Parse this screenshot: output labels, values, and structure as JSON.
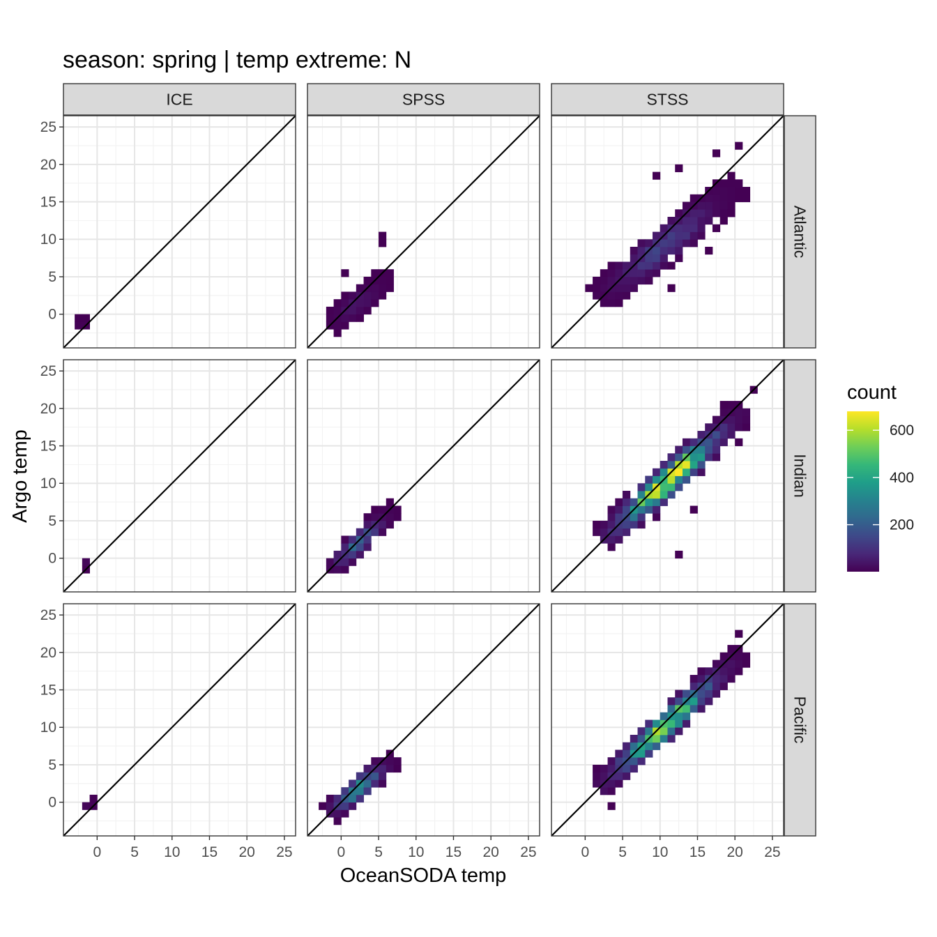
{
  "chart_data": {
    "type": "heatmap",
    "title": "season: spring | temp extreme: N",
    "xlabel": "OceanSODA temp",
    "ylabel": "Argo temp",
    "column_facets": [
      "ICE",
      "SPSS",
      "STSS"
    ],
    "row_facets": [
      "Atlantic",
      "Indian",
      "Pacific"
    ],
    "xlim": [
      -4.5,
      26.5
    ],
    "ylim": [
      -4.5,
      26.5
    ],
    "x_ticks": [
      0,
      5,
      10,
      15,
      20,
      25
    ],
    "y_ticks": [
      0,
      5,
      10,
      15,
      20,
      25
    ],
    "grid": true,
    "reference_line": "y = x",
    "legend": {
      "title": "count",
      "position": "right",
      "ticks": [
        200,
        400,
        600
      ],
      "min": 1,
      "max": 680,
      "palette": "viridis"
    },
    "bin_width": 1,
    "panels": [
      {
        "row": "Atlantic",
        "col": "ICE",
        "ridges": [
          {
            "x0": -2.5,
            "x1": -1.5,
            "y0": -2,
            "y1": -0.5,
            "hw": 0.9,
            "peak": 10
          }
        ]
      },
      {
        "row": "Atlantic",
        "col": "SPSS",
        "ridges": [
          {
            "x0": -1.5,
            "x1": 6.5,
            "y0": -1.5,
            "y1": 5,
            "hw": 1.6,
            "peak": 45
          }
        ],
        "outliers": [
          [
            5.5,
            10.5
          ],
          [
            5,
            9.5
          ],
          [
            0,
            5
          ]
        ]
      },
      {
        "row": "Atlantic",
        "col": "STSS",
        "ridges": [
          {
            "x0": 2.5,
            "x1": 20,
            "y0": 2.5,
            "y1": 17,
            "hw": 2.4,
            "peak": 140
          }
        ],
        "outliers": [
          [
            11.5,
            3
          ],
          [
            18,
            12.5
          ],
          [
            20,
            22.5
          ],
          [
            17.5,
            21.5
          ],
          [
            12.5,
            19.5
          ],
          [
            9.5,
            18
          ],
          [
            16.5,
            8
          ],
          [
            11.5,
            6.5
          ]
        ]
      },
      {
        "row": "Indian",
        "col": "ICE",
        "ridges": [
          {
            "x0": -2,
            "x1": -1,
            "y0": -1.5,
            "y1": 0,
            "hw": 0.8,
            "peak": 12
          }
        ]
      },
      {
        "row": "Indian",
        "col": "SPSS",
        "ridges": [
          {
            "x0": -1.5,
            "x1": 7,
            "y0": -1.5,
            "y1": 6.5,
            "hw": 1.5,
            "peak": 210
          }
        ]
      },
      {
        "row": "Indian",
        "col": "STSS",
        "ridges": [
          {
            "x0": 3,
            "x1": 21,
            "y0": 3,
            "y1": 19.5,
            "hw": 2.1,
            "peak": 680
          }
        ],
        "outliers": [
          [
            12,
            0.5
          ],
          [
            22,
            22.5
          ],
          [
            20.5,
            15.5
          ],
          [
            14.5,
            6.5
          ],
          [
            13,
            10
          ]
        ]
      },
      {
        "row": "Pacific",
        "col": "ICE",
        "ridges": [
          {
            "x0": -2,
            "x1": 0,
            "y0": -1,
            "y1": 0.5,
            "hw": 0.8,
            "peak": 20
          }
        ]
      },
      {
        "row": "Pacific",
        "col": "SPSS",
        "ridges": [
          {
            "x0": -1.5,
            "x1": 7,
            "y0": -1.5,
            "y1": 6,
            "hw": 1.6,
            "peak": 330
          }
        ]
      },
      {
        "row": "Pacific",
        "col": "STSS",
        "ridges": [
          {
            "x0": 2.5,
            "x1": 20.5,
            "y0": 2.5,
            "y1": 19.5,
            "hw": 1.9,
            "peak": 560
          }
        ],
        "outliers": [
          [
            20.5,
            22
          ],
          [
            3.5,
            -1
          ]
        ]
      }
    ]
  }
}
